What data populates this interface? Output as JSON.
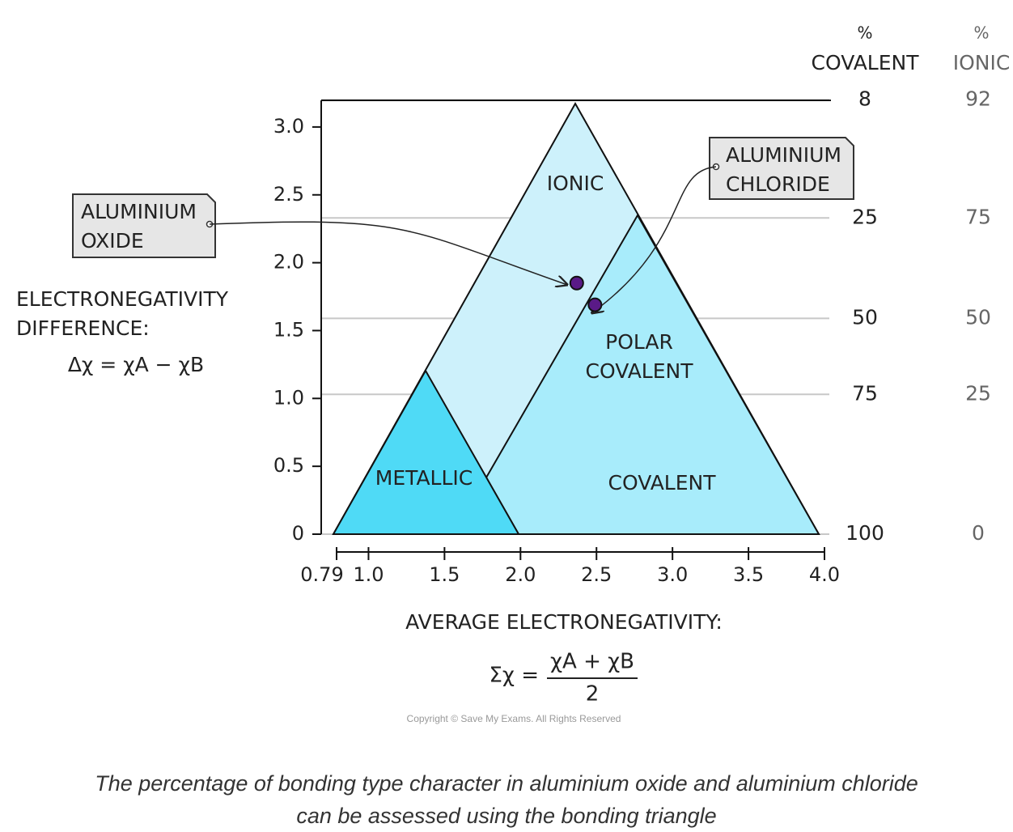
{
  "chart_data": {
    "type": "scatter",
    "y_label": [
      "ELECTRONEGATIVITY",
      "DIFFERENCE:"
    ],
    "y_formula": "Δχ = χA − χB",
    "x_label": "AVERAGE ELECTRONEGATIVITY:",
    "x_formula": {
      "lhs": "Σχ =",
      "numerator": "χA + χB",
      "denominator": "2"
    },
    "xlim": [
      0.79,
      4.0
    ],
    "xticks": [
      0.79,
      {
        "value": 1,
        "label": "1.0"
      },
      1.5,
      {
        "value": 2,
        "label": "2.0"
      },
      2.5,
      {
        "value": 3,
        "label": "3.0"
      },
      3.5,
      {
        "value": 4,
        "label": "4.0"
      }
    ],
    "ylim": [
      0,
      3.2
    ],
    "yticks": [
      0,
      0.5,
      {
        "value": 1,
        "label": "1.0"
      },
      1.5,
      {
        "value": 2,
        "label": "2.0"
      },
      2.5,
      {
        "value": 3,
        "label": "3.0"
      }
    ],
    "regions": {
      "ionic": "IONIC",
      "polar_covalent": [
        "POLAR",
        "COVALENT"
      ],
      "covalent": "COVALENT",
      "metallic": "METALLIC"
    },
    "x": [
      2.37,
      2.49
    ],
    "values": [
      1.85,
      1.69
    ],
    "point_labels": [
      [
        "ALUMINIUM",
        "OXIDE"
      ],
      [
        "ALUMINIUM",
        "CHLORIDE"
      ]
    ],
    "color": "#5a1a87",
    "percent_scale": {
      "headers": {
        "covalent": [
          "%",
          "COVALENT"
        ],
        "ionic": [
          "%",
          "IONIC"
        ]
      },
      "levels": [
        {
          "y": 3.2,
          "covalent": 8,
          "ionic": 92
        },
        {
          "y": 2.33,
          "covalent": 25,
          "ionic": 75
        },
        {
          "y": 1.59,
          "covalent": 50,
          "ionic": 50
        },
        {
          "y": 1.03,
          "covalent": 75,
          "ionic": 25
        },
        {
          "y": 0,
          "covalent": 100,
          "ionic": 0
        }
      ]
    },
    "copyright": "Copyright © Save My Exams. All Rights Reserved"
  },
  "caption": [
    "The percentage of bonding type character in aluminium oxide and aluminium chloride",
    "can be assessed using the bonding triangle"
  ]
}
